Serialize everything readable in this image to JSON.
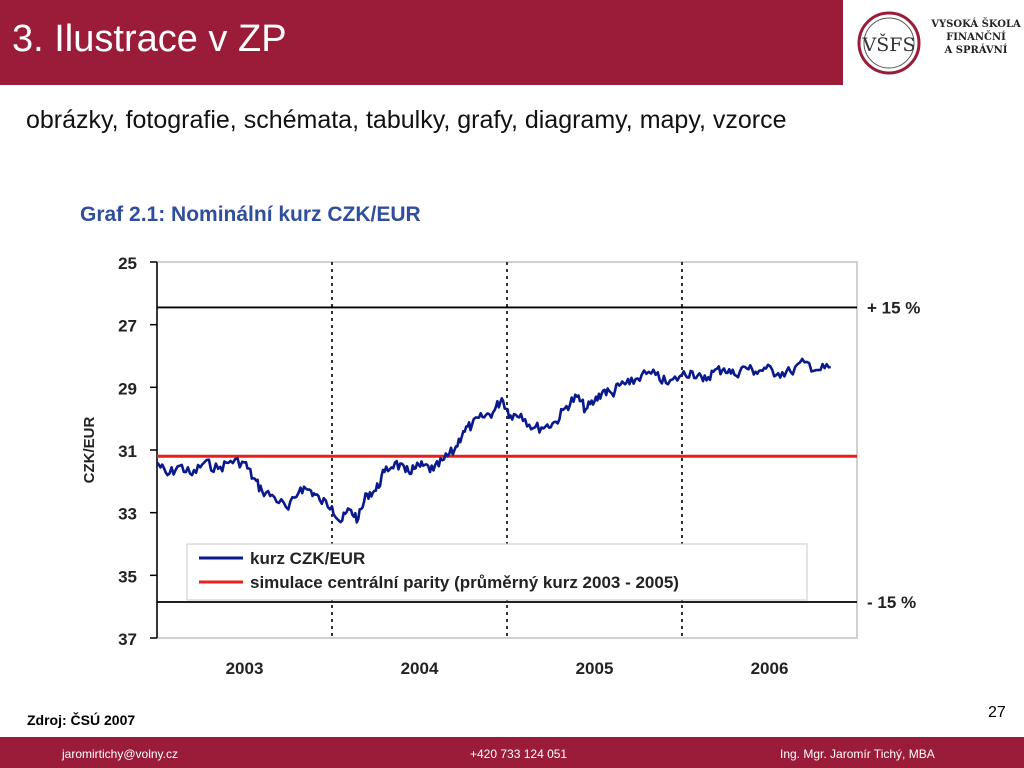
{
  "slide": {
    "title": "3. Ilustrace v ZP",
    "subtitle": "obrázky, fotografie, schémata, tabulky, grafy, diagramy, mapy, vzorce",
    "source": "Zdroj: ČSÚ 2007",
    "page_number": "27"
  },
  "logo": {
    "monogram": "VŠFS",
    "lines": [
      "VYSOKÁ ŠKOLA",
      "FINANČNÍ",
      "A SPRÁVNÍ"
    ]
  },
  "footer": {
    "email": "jaromirtichy@volny.cz",
    "phone": "+420 733 124 051",
    "author": "Ing. Mgr. Jaromír Tichý, MBA"
  },
  "colors": {
    "brand": "#9b1c38",
    "kurz_line": "#0a1a8c",
    "parity_line": "#e8201c",
    "chart_title": "#2f4f9e"
  },
  "chart_data": {
    "type": "line",
    "title": "Graf 2.1: Nominální kurz CZK/EUR",
    "ylabel": "CZK/EUR",
    "xlabel": "",
    "ylim": [
      25,
      37
    ],
    "y_inverted": true,
    "yticks": [
      25,
      27,
      29,
      31,
      33,
      35,
      37
    ],
    "xlim": [
      2002.5,
      2006.5
    ],
    "xtick_labels": [
      "2003",
      "2004",
      "2005",
      "2006"
    ],
    "xtick_positions": [
      2003,
      2004,
      2005,
      2006
    ],
    "year_separators": [
      2003.5,
      2004.5,
      2005.5
    ],
    "grid": false,
    "legend_position": "bottom-center",
    "reference_lines": [
      {
        "label": "+ 15 %",
        "y": 26.45
      },
      {
        "label": "- 15 %",
        "y": 35.85
      }
    ],
    "series": [
      {
        "name": "kurz CZK/EUR",
        "x": [
          2002.5,
          2002.56,
          2002.63,
          2002.7,
          2002.77,
          2002.85,
          2002.92,
          2003.0,
          2003.05,
          2003.1,
          2003.17,
          2003.25,
          2003.32,
          2003.38,
          2003.43,
          2003.5,
          2003.55,
          2003.6,
          2003.65,
          2003.7,
          2003.75,
          2003.8,
          2003.86,
          2003.92,
          2003.97,
          2004.02,
          2004.08,
          2004.14,
          2004.2,
          2004.25,
          2004.3,
          2004.36,
          2004.42,
          2004.47,
          2004.52,
          2004.58,
          2004.65,
          2004.72,
          2004.78,
          2004.84,
          2004.9,
          2004.95,
          2005.0,
          2005.05,
          2005.1,
          2005.15,
          2005.2,
          2005.27,
          2005.35,
          2005.42,
          2005.5,
          2005.56,
          2005.62,
          2005.68,
          2005.74,
          2005.8,
          2005.86,
          2005.92,
          2005.98,
          2006.05,
          2006.12,
          2006.2,
          2006.28,
          2006.35
        ],
        "values": [
          31.4,
          31.8,
          31.5,
          31.8,
          31.4,
          31.6,
          31.35,
          31.4,
          31.9,
          32.3,
          32.5,
          32.9,
          32.2,
          32.3,
          32.6,
          32.8,
          33.3,
          32.9,
          33.2,
          32.4,
          32.3,
          31.7,
          31.4,
          31.7,
          31.6,
          31.5,
          31.65,
          31.3,
          31.0,
          30.4,
          30.2,
          29.95,
          29.8,
          29.35,
          29.9,
          29.85,
          30.3,
          30.25,
          30.1,
          29.6,
          29.3,
          29.7,
          29.45,
          29.1,
          29.2,
          28.9,
          28.9,
          28.6,
          28.6,
          28.9,
          28.6,
          28.5,
          28.8,
          28.5,
          28.4,
          28.6,
          28.35,
          28.5,
          28.4,
          28.55,
          28.5,
          28.2,
          28.45,
          28.35
        ]
      },
      {
        "name": "simulace centrální parity (průměrný kurz 2003 - 2005)",
        "x": [
          2002.5,
          2006.5
        ],
        "values": [
          31.2,
          31.2
        ]
      }
    ]
  }
}
